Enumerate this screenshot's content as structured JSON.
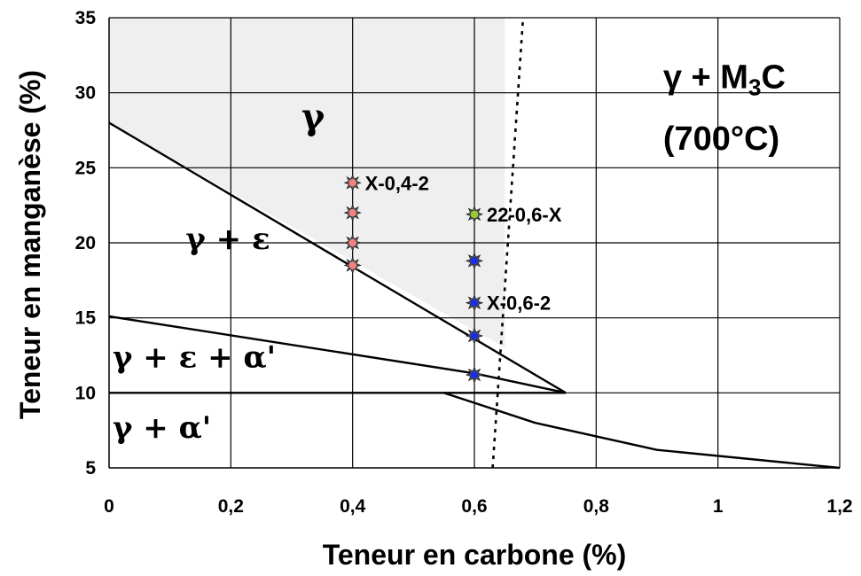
{
  "chart_data": {
    "type": "scatter",
    "title": "",
    "xlabel": "Teneur en carbone (%)",
    "ylabel": "Teneur en manganèse (%)",
    "xlim": [
      0,
      1.2
    ],
    "ylim": [
      5,
      35
    ],
    "x_ticks": [
      "0",
      "0,2",
      "0,4",
      "0,6",
      "0,8",
      "1",
      "1,2"
    ],
    "y_ticks": [
      "5",
      "10",
      "15",
      "20",
      "25",
      "30",
      "35"
    ],
    "grid": true,
    "gamma_region": [
      [
        0,
        35
      ],
      [
        0,
        28
      ],
      [
        0.65,
        13
      ],
      [
        0.65,
        35
      ]
    ],
    "boundary_lines": [
      {
        "points": [
          [
            0,
            28
          ],
          [
            0.75,
            10
          ]
        ]
      },
      {
        "points": [
          [
            0,
            15.1
          ],
          [
            0.6,
            11.3
          ],
          [
            0.75,
            10
          ]
        ]
      },
      {
        "points": [
          [
            0,
            10
          ],
          [
            0.75,
            10
          ]
        ]
      },
      {
        "points": [
          [
            0.55,
            10
          ],
          [
            0.7,
            8
          ],
          [
            0.9,
            6.2
          ],
          [
            1.2,
            5
          ]
        ]
      },
      {
        "points": [
          [
            0.63,
            5
          ],
          [
            0.68,
            35
          ]
        ],
        "style": "dotted"
      }
    ],
    "series": [
      {
        "color": "#f48080",
        "points": [
          [
            0.4,
            24
          ],
          [
            0.4,
            22
          ],
          [
            0.4,
            20
          ],
          [
            0.4,
            18.5
          ]
        ]
      },
      {
        "color": "#99cc33",
        "points": [
          [
            0.6,
            21.9
          ]
        ]
      },
      {
        "color": "#1a2fe0",
        "points": [
          [
            0.6,
            18.8
          ],
          [
            0.6,
            16
          ],
          [
            0.6,
            13.8
          ],
          [
            0.6,
            11.2
          ]
        ]
      }
    ],
    "point_labels": [
      {
        "text": "X-0,4-2",
        "x": 0.4,
        "y": 24
      },
      {
        "text": "22-0,6-X",
        "x": 0.6,
        "y": 21.9
      },
      {
        "text": "X-0,6-2",
        "x": 0.6,
        "y": 16
      }
    ],
    "region_labels": [
      {
        "text": "γ",
        "x": 0.31,
        "y": 27.6
      },
      {
        "text": "γ + ε",
        "x": 0.12,
        "y": 19.6
      },
      {
        "text": "γ + ε + α'",
        "x": 0.0,
        "y": 11.7
      },
      {
        "text": "γ + α'",
        "x": 0.0,
        "y": 7.0
      },
      {
        "text": "γ + M",
        "sub": "3",
        "tail": "C",
        "x": 0.91,
        "y": 30.3
      },
      {
        "text": "(700°C)",
        "x": 0.91,
        "y": 26.2
      }
    ]
  }
}
